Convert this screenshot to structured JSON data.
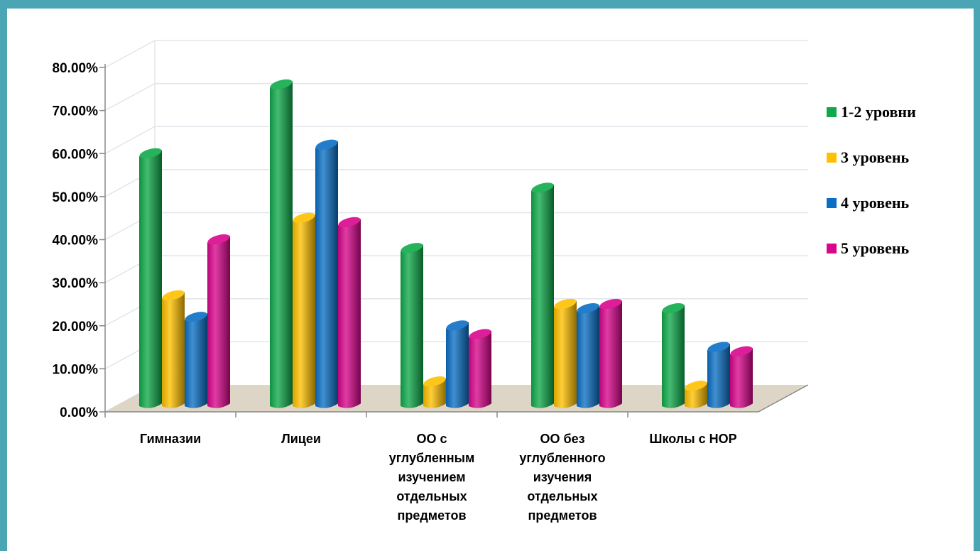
{
  "chart_data": {
    "type": "bar",
    "title": "",
    "xlabel": "",
    "ylabel": "",
    "ylim": [
      0,
      0.8
    ],
    "yticks": [
      "0.00%",
      "10.00%",
      "20.00%",
      "30.00%",
      "40.00%",
      "50.00%",
      "60.00%",
      "70.00%",
      "80.00%"
    ],
    "categories": [
      [
        "Гимназии"
      ],
      [
        "Лицеи"
      ],
      [
        "ОО с",
        "углубленным",
        "изучением",
        "отдельных",
        "предметов"
      ],
      [
        "ОО без",
        "углубленного",
        "изучения",
        "отдельных",
        "предметов"
      ],
      [
        "Школы с НОР"
      ]
    ],
    "series": [
      {
        "name": "1-2 уровни",
        "color": "#0fa94a",
        "values": [
          0.58,
          0.74,
          0.36,
          0.5,
          0.22
        ]
      },
      {
        "name": "3 уровень",
        "color": "#ffc000",
        "values": [
          0.25,
          0.43,
          0.05,
          0.23,
          0.04
        ]
      },
      {
        "name": "4 уровень",
        "color": "#0a6fc4",
        "values": [
          0.2,
          0.6,
          0.18,
          0.22,
          0.13
        ]
      },
      {
        "name": "5 уровень",
        "color": "#d9058c",
        "values": [
          0.38,
          0.42,
          0.16,
          0.23,
          0.12
        ]
      }
    ],
    "legend_position": "right",
    "grid": true,
    "style": "3d-cylinder"
  }
}
